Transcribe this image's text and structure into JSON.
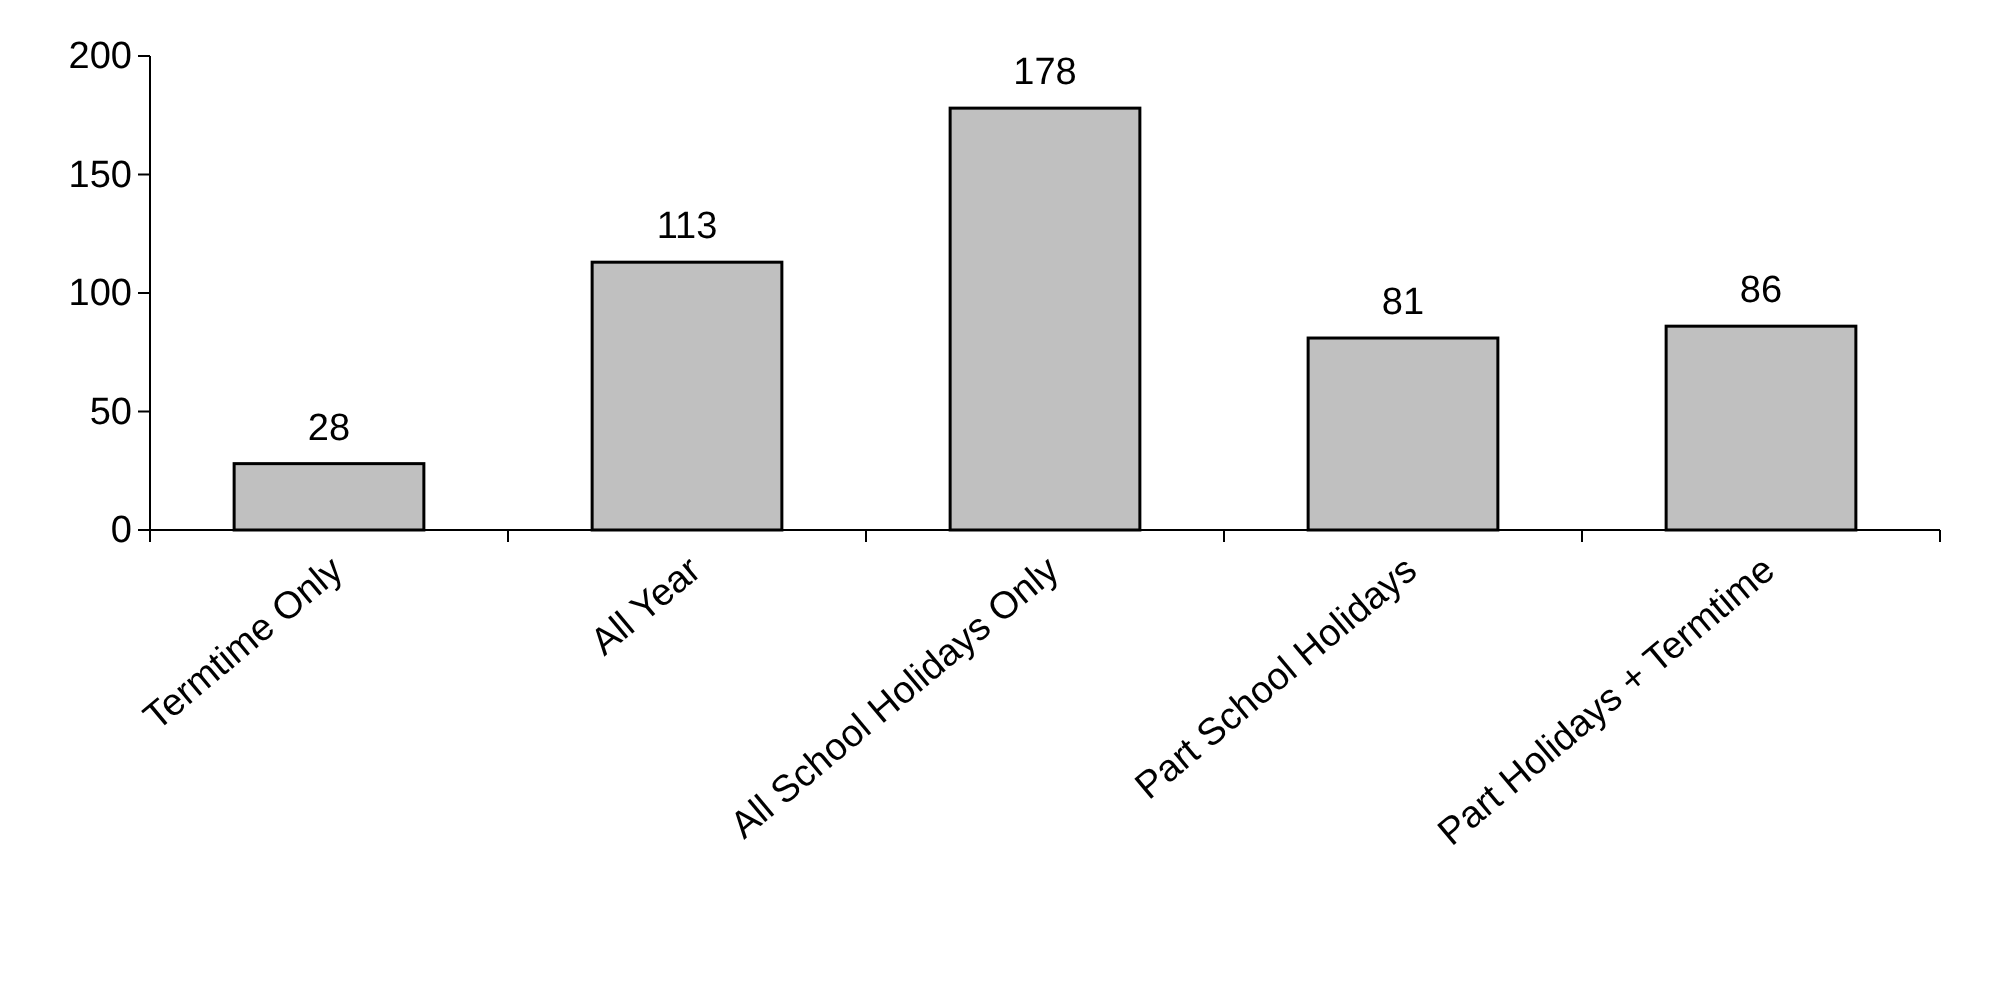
{
  "chart_data": {
    "type": "bar",
    "categories": [
      "Termtime Only",
      "All Year",
      "All School Holidays Only",
      "Part School Holidays",
      "Part Holidays + Termtime"
    ],
    "values": [
      28,
      113,
      178,
      81,
      86
    ],
    "color": "#c0c0c0",
    "ylim": [
      0,
      200
    ],
    "yticks": [
      0,
      50,
      100,
      150,
      200
    ],
    "grid": false,
    "data_labels": true
  }
}
